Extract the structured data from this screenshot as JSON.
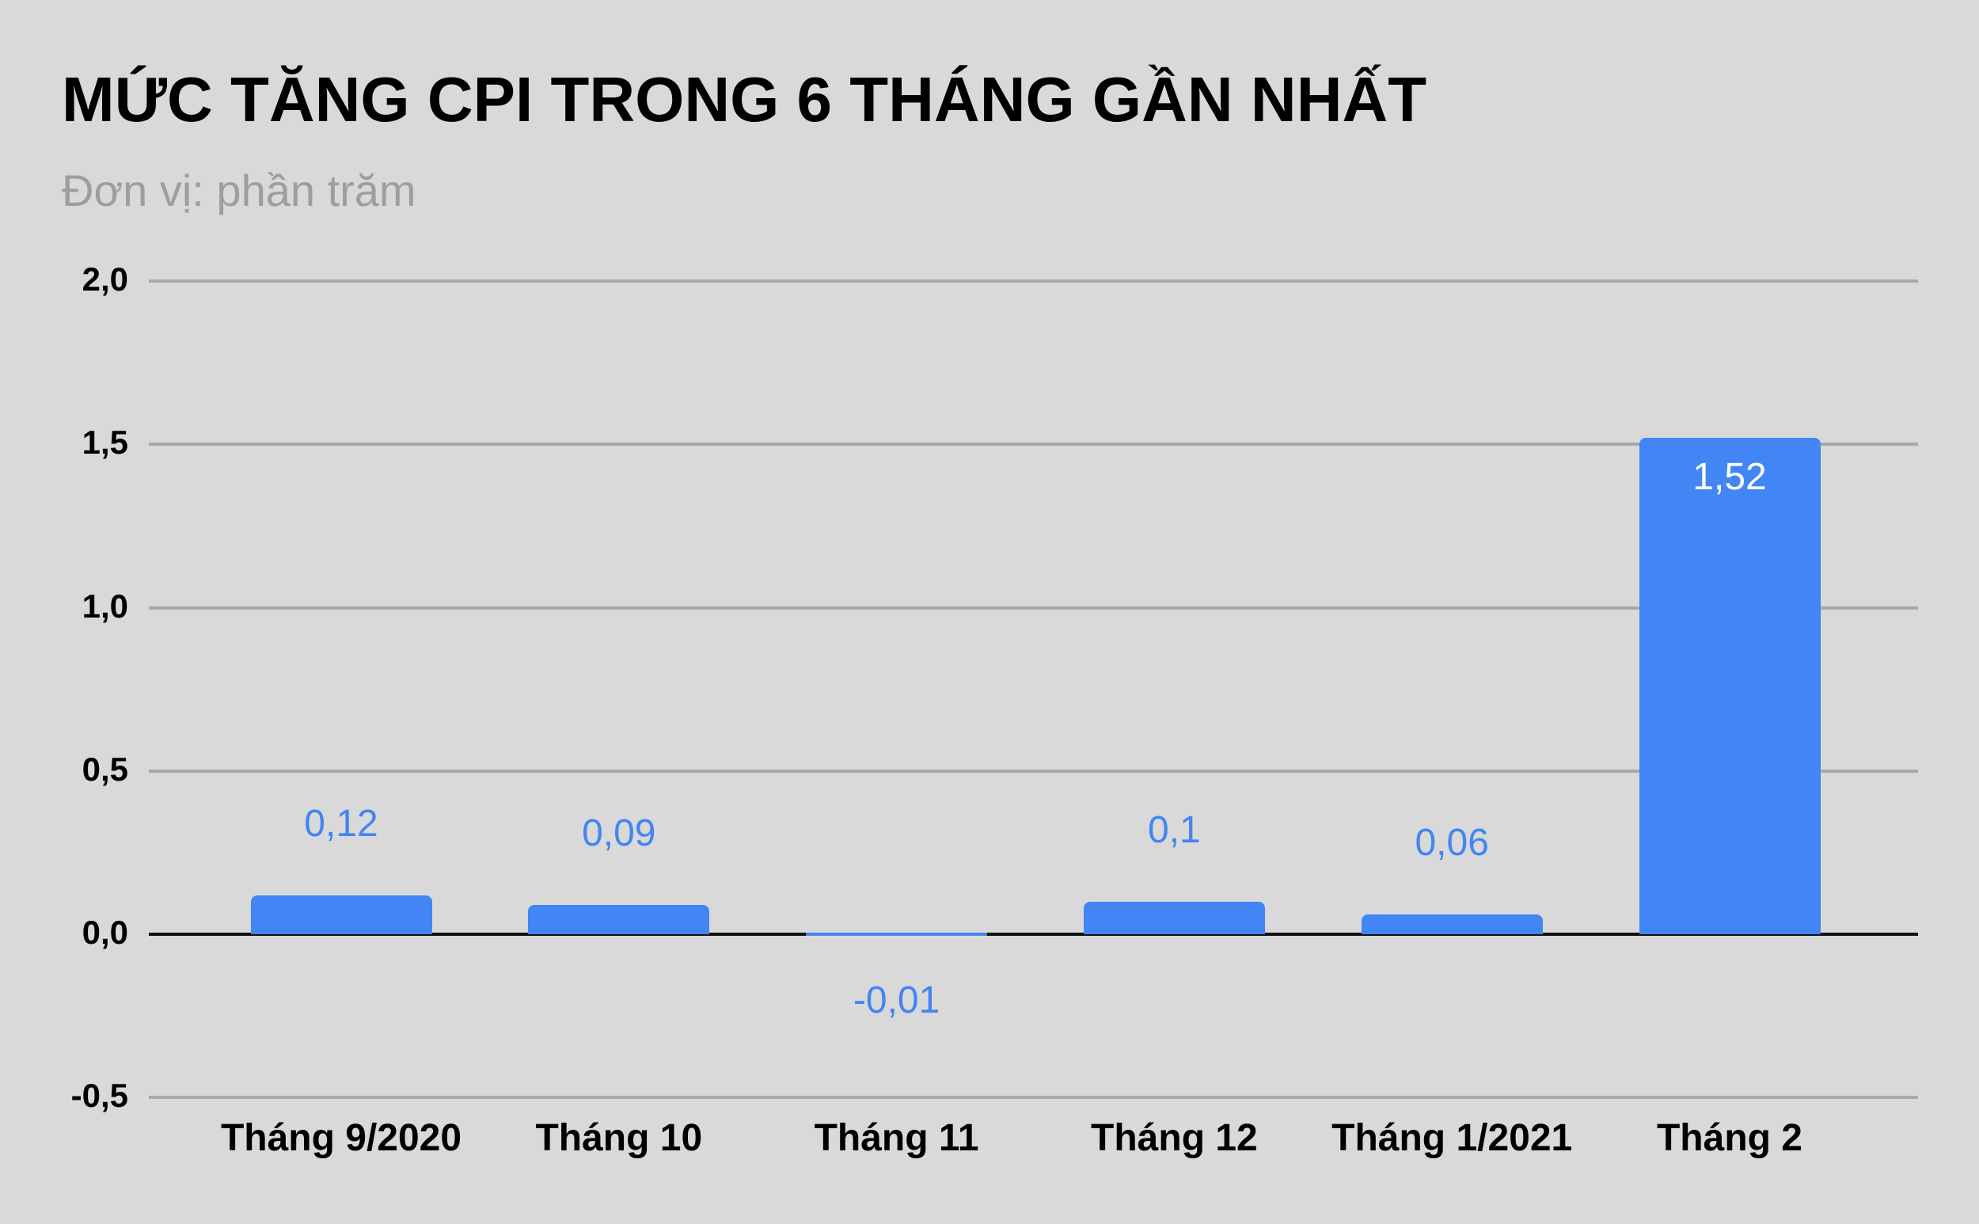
{
  "title": "MỨC TĂNG CPI TRONG 6 THÁNG GẦN NHẤT",
  "subtitle": "Đơn vị: phần trăm",
  "colors": {
    "bar": "#4285f4",
    "background": "#d9d9d9",
    "grid": "#a8a8a8",
    "zero_line": "#111111"
  },
  "chart_data": {
    "type": "bar",
    "title": "MỨC TĂNG CPI TRONG 6 THÁNG GẦN NHẤT",
    "subtitle": "Đơn vị: phần trăm",
    "xlabel": "",
    "ylabel": "",
    "categories": [
      "Tháng 9/2020",
      "Tháng 10",
      "Tháng 11",
      "Tháng 12",
      "Tháng 1/2021",
      "Tháng 2"
    ],
    "values": [
      0.12,
      0.09,
      -0.01,
      0.1,
      0.06,
      1.52
    ],
    "value_labels": [
      "0,12",
      "0,09",
      "-0,01",
      "0,1",
      "0,06",
      "1,52"
    ],
    "ylim": [
      -0.5,
      2.0
    ],
    "yticks": [
      2.0,
      1.5,
      1.0,
      0.5,
      0.0,
      -0.5
    ],
    "ytick_labels": [
      "2,0",
      "1,5",
      "1,0",
      "0,5",
      "0,0",
      "-0,5"
    ],
    "grid": true,
    "legend": null
  }
}
